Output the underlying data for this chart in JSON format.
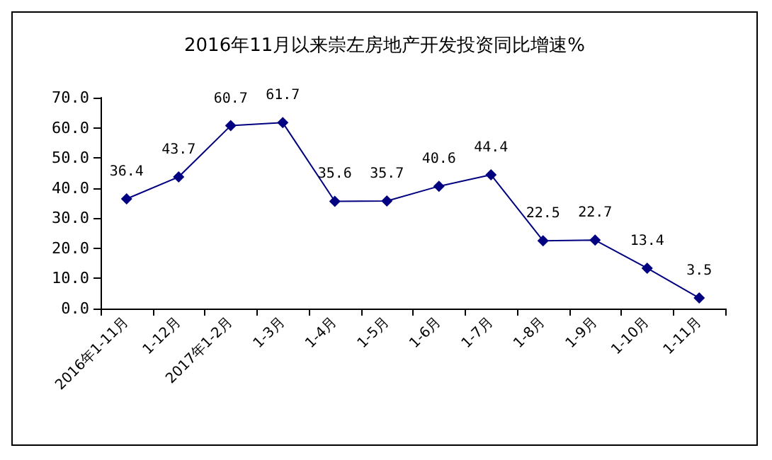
{
  "chart_data": {
    "type": "line",
    "title": "2016年11月以来崇左房地产开发投资同比增速%",
    "categories": [
      "2016年1-11月",
      "1-12月",
      "2017年1-2月",
      "1-3月",
      "1-4月",
      "1-5月",
      "1-6月",
      "1-7月",
      "1-8月",
      "1-9月",
      "1-10月",
      "1-11月"
    ],
    "series": [
      {
        "color": "#000080",
        "values": [
          36.4,
          43.7,
          60.7,
          61.7,
          35.6,
          35.7,
          40.6,
          44.4,
          22.5,
          22.7,
          13.4,
          3.5
        ]
      }
    ],
    "ylim": [
      0,
      70
    ],
    "yticks": [
      {
        "value": 0,
        "label": "0.0"
      },
      {
        "value": 10,
        "label": "10.0"
      },
      {
        "value": 20,
        "label": "20.0"
      },
      {
        "value": 30,
        "label": "30.0"
      },
      {
        "value": 40,
        "label": "40.0"
      },
      {
        "value": 50,
        "label": "50.0"
      },
      {
        "value": 60,
        "label": "60.0"
      },
      {
        "value": 70,
        "label": "70.0"
      }
    ],
    "grid": false,
    "marker": "diamond",
    "line_style": "solid",
    "data_labels": true
  }
}
